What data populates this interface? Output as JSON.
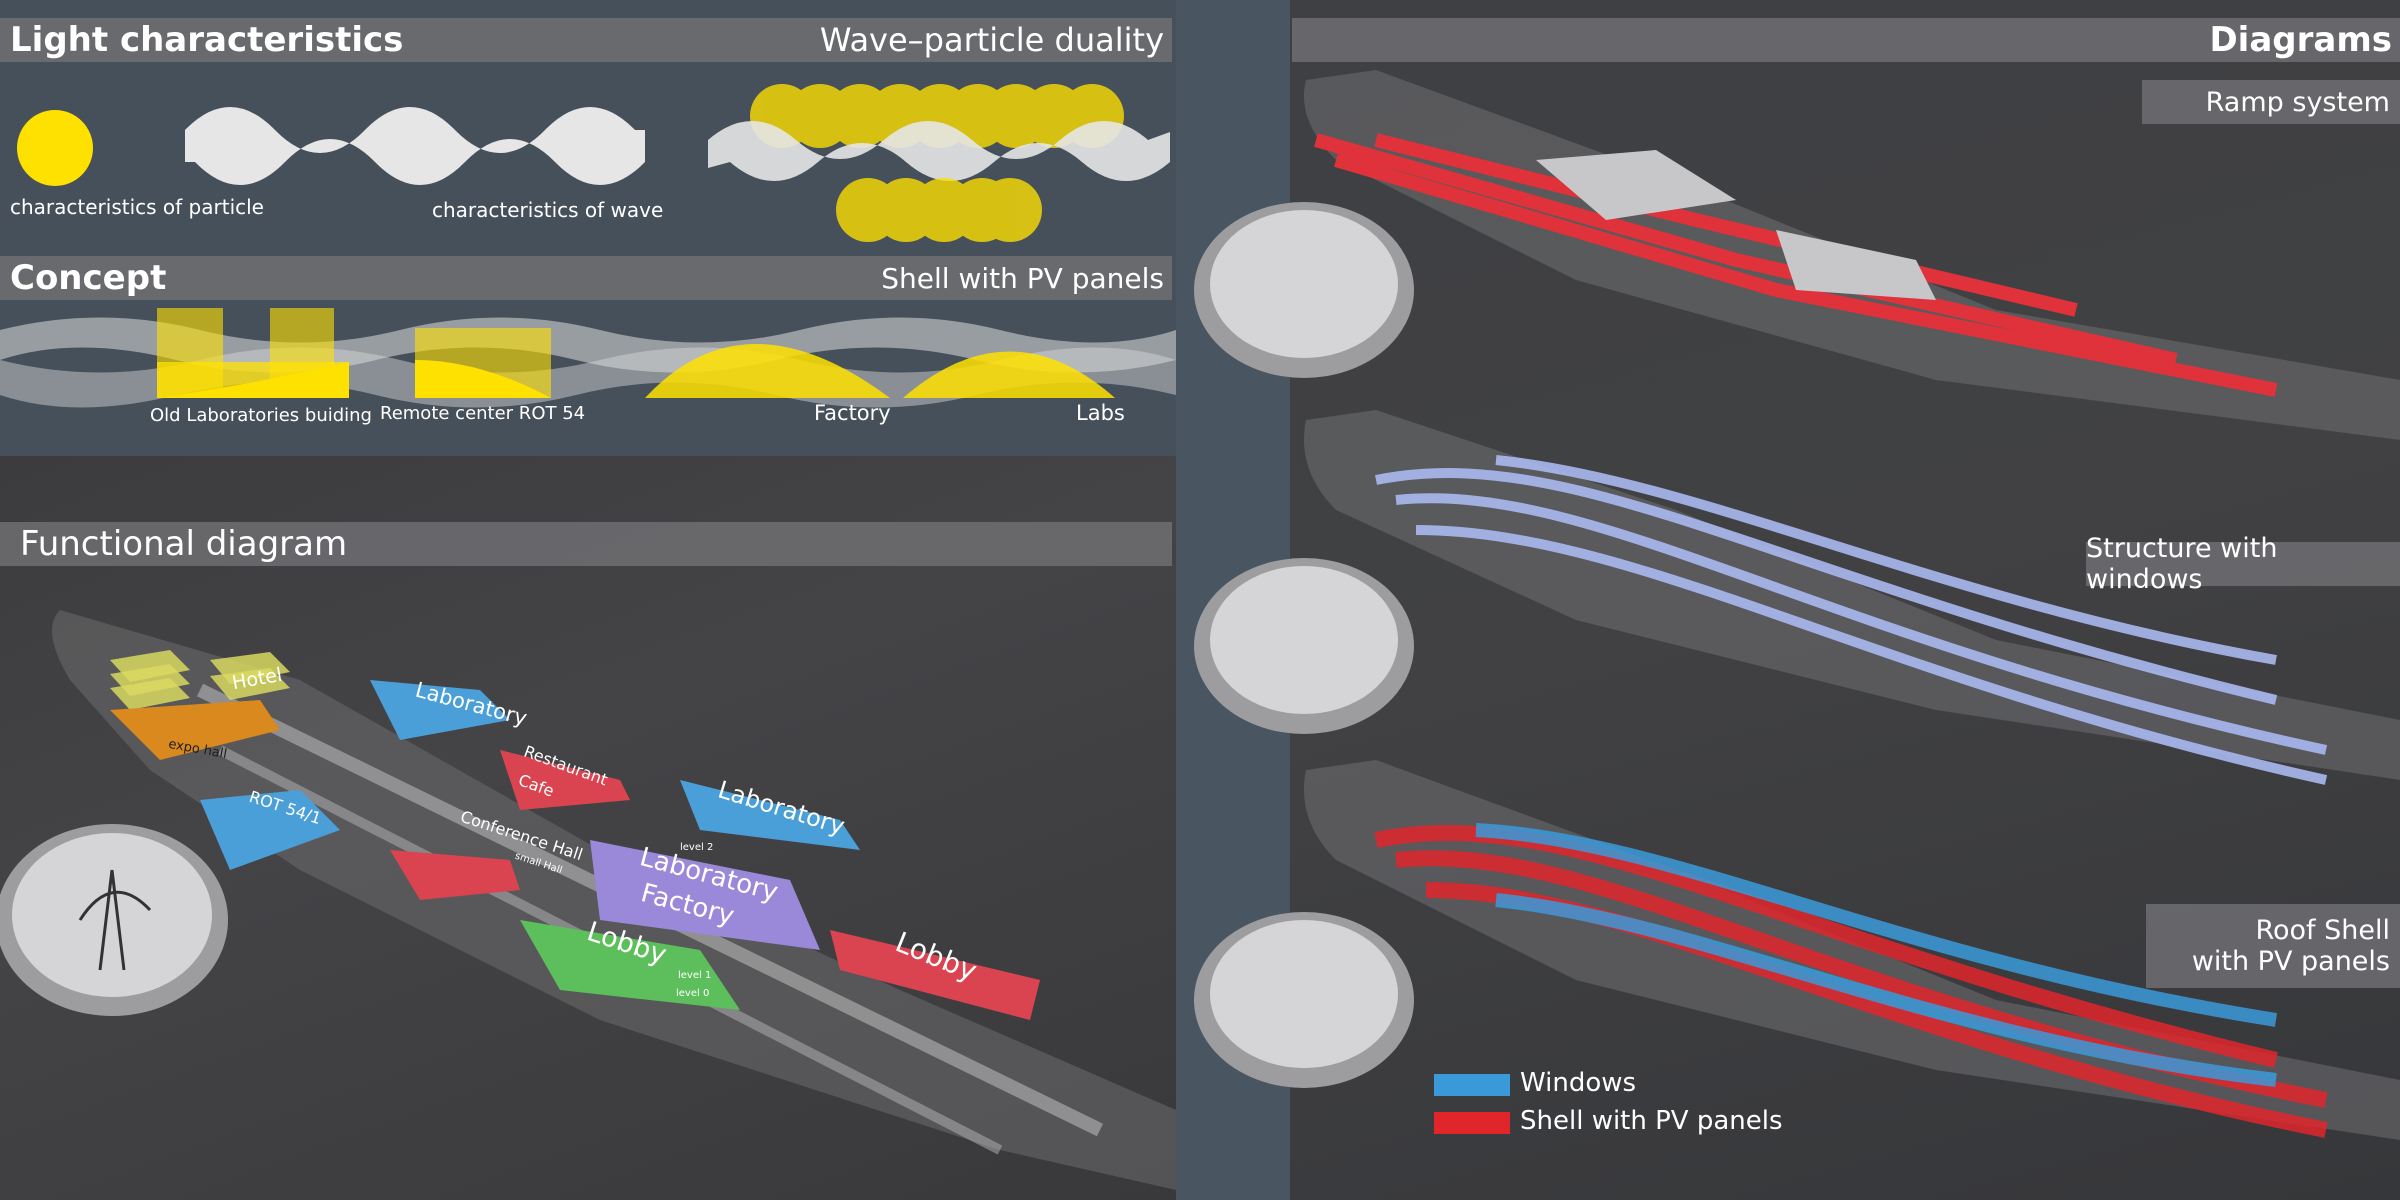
{
  "sections": {
    "light": {
      "title": "Light characteristics",
      "subtitle": "Wave–particle duality"
    },
    "concept": {
      "title": "Concept",
      "subtitle": "Shell with PV panels"
    },
    "functional": {
      "title": "Functional diagram"
    },
    "diagrams": {
      "title": "Diagrams"
    }
  },
  "light_labels": {
    "particle": "characteristics of particle",
    "wave": "characteristics of wave"
  },
  "concept_labels": {
    "old_lab": "Old Laboratories buiding",
    "remote": "Remote center  ROT 54",
    "factory": "Factory",
    "labs": "Labs"
  },
  "functional_labels": {
    "hotel": "Hotel",
    "expo": "expo hall",
    "laboratory_top": "Laboratory",
    "restaurant": "Restaurant",
    "cafe": "Cafe",
    "laboratory_right": "Laboratory",
    "rot": "ROT 54/1",
    "conference": "Conference Hall",
    "small_hall": "small Hall",
    "lab_factory_1": "Laboratory",
    "lab_factory_2": "Factory",
    "lobby_green": "Lobby",
    "lobby_red": "Lobby",
    "level1": "level 1",
    "level0": "level 0",
    "level2": "level 2"
  },
  "diagram_labels": {
    "ramp": "Ramp system",
    "structure": "Structure with windows",
    "roof_line1": "Roof Shell",
    "roof_line2": "with PV panels"
  },
  "legend": {
    "windows": "Windows",
    "shell": "Shell with PV panels",
    "windows_color": "#3a9ad9",
    "shell_color": "#e0262b"
  },
  "colors": {
    "yellow": "#ffe100",
    "ramp_red": "#e0323a",
    "window_blue": "#aab8f0",
    "lab_blue": "#4b9fd8",
    "factory_purple": "#9a88d8",
    "lobby_green": "#5cbf5c",
    "red_zone": "#d94450",
    "expo_orange": "#d9891e",
    "hotel_yellow": "#d8d860"
  }
}
